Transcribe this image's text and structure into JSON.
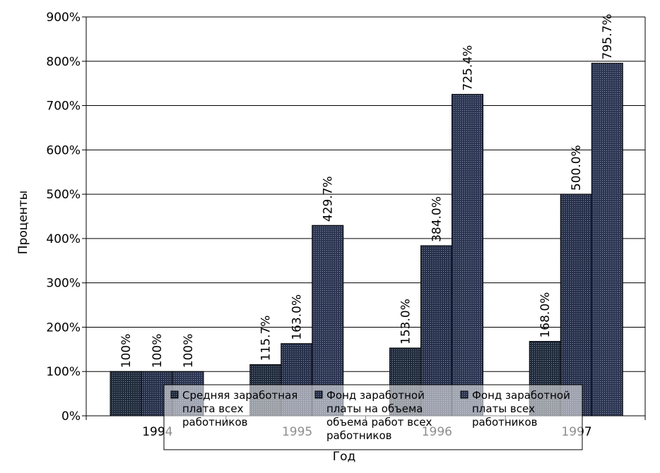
{
  "chart_data": {
    "type": "bar",
    "xlabel": "Год",
    "ylabel": "Проценты",
    "ylim": [
      0,
      900
    ],
    "ytick_step": 100,
    "grid": true,
    "legend_position": "bottom-overlapping",
    "categories": [
      "1994",
      "1995",
      "1996",
      "1997"
    ],
    "ytick_labels": [
      "0%",
      "100%",
      "200%",
      "300%",
      "400%",
      "500%",
      "600%",
      "700%",
      "800%",
      "900%"
    ],
    "series": [
      {
        "name": "Средняя заработная плата всех работников",
        "values": [
          100,
          115.7,
          153.0,
          168.0
        ],
        "labels": [
          "100%",
          "115.7%",
          "153.0%",
          "168.0%"
        ],
        "color": "#1f2a3a"
      },
      {
        "name": "Фонд заработной платы на объема работ всех работников",
        "values": [
          100,
          163.0,
          384.0,
          500.0
        ],
        "labels": [
          "100%",
          "163.0%",
          "384.0%",
          "500.0%"
        ],
        "color": "#27304a"
      },
      {
        "name": "Фонд заработной платы всех работников",
        "values": [
          100,
          429.7,
          725.4,
          795.7
        ],
        "labels": [
          "100%",
          "429.7%",
          "725.4%",
          "795.7%"
        ],
        "color": "#2c3652"
      }
    ],
    "legend": [
      {
        "lines": [
          "Средняя заработная",
          "плата всех",
          "работников"
        ]
      },
      {
        "lines": [
          "Фонд заработной",
          "платы на объема",
          "объема работ всех",
          "работников"
        ]
      },
      {
        "lines": [
          "Фонд заработной",
          "платы всех",
          "работников"
        ]
      }
    ]
  }
}
